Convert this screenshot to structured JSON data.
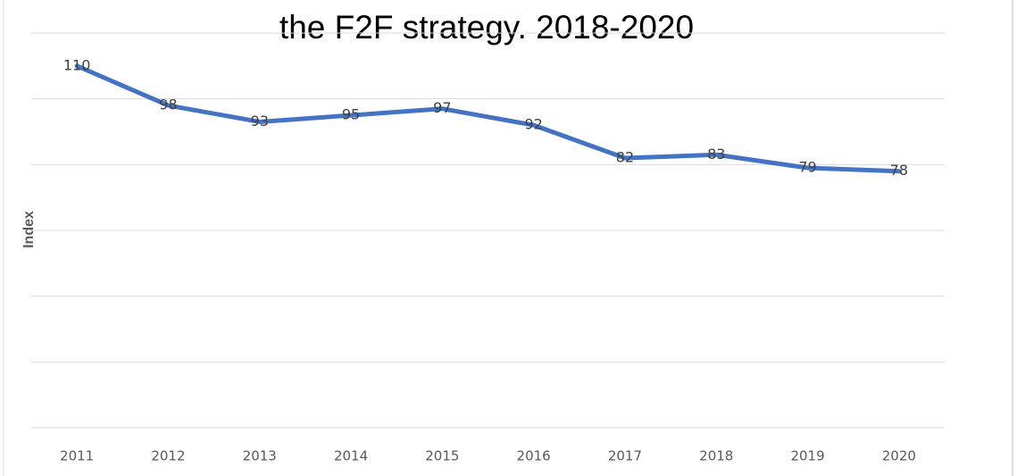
{
  "chart_data": {
    "type": "line",
    "title": "the F2F strategy. 2018-2020",
    "y_label": "Index",
    "categories": [
      "2011",
      "2012",
      "2013",
      "2014",
      "2015",
      "2016",
      "2017",
      "2018",
      "2019",
      "2020"
    ],
    "series": [
      {
        "name": "Index",
        "color": "#4472c4",
        "values": [
          110,
          98,
          93,
          95,
          97,
          92,
          82,
          83,
          79,
          78
        ]
      }
    ],
    "ylim": [
      0,
      120
    ],
    "yticks": [
      0,
      20,
      40,
      60,
      80,
      100,
      120
    ],
    "grid": true
  }
}
